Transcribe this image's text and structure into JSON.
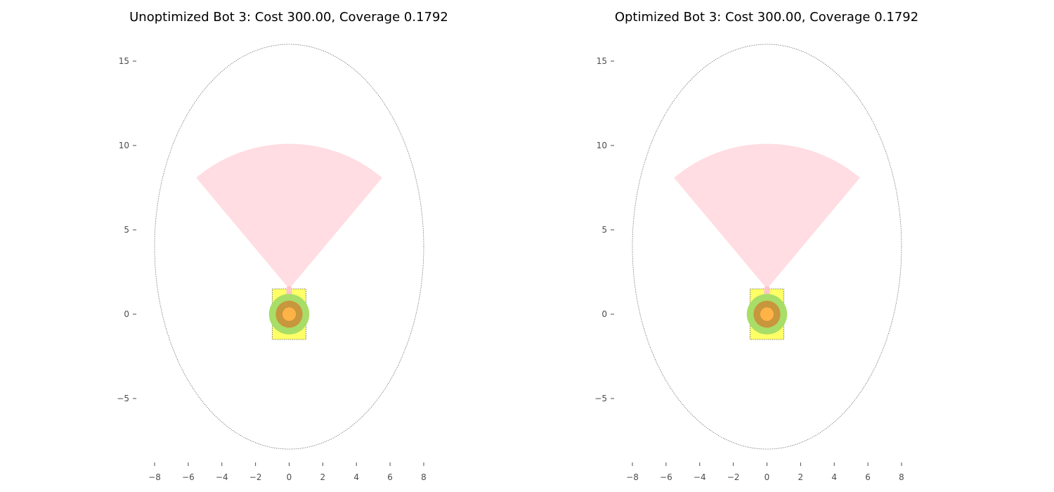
{
  "chart_data": [
    {
      "type": "scatter",
      "title": "Unoptimized Bot 3: Cost 300.00, Coverage 0.1792",
      "xlabel": "",
      "ylabel": "",
      "xlim": [
        -8.5,
        8.5
      ],
      "ylim": [
        -8.8,
        16.5
      ],
      "xticks": [
        -8,
        -6,
        -4,
        -2,
        0,
        2,
        4,
        6,
        8
      ],
      "xtick_labels": [
        "−8",
        "−6",
        "−4",
        "−2",
        "0",
        "2",
        "4",
        "6",
        "8"
      ],
      "yticks": [
        -5,
        0,
        5,
        10,
        15
      ],
      "ytick_labels": [
        "−5",
        "0",
        "5",
        "10",
        "15"
      ],
      "grid": false,
      "shapes": {
        "boundary_ellipse": {
          "cx": 0,
          "cy": 4,
          "rx": 8,
          "ry": 12,
          "color": "#444444",
          "style": "dotted"
        },
        "sensor_sector": {
          "cx": 0,
          "cy": 1.5,
          "radius": 8.6,
          "start_deg": 50,
          "end_deg": 130,
          "color": "#ffdde2"
        },
        "sensor_stem": {
          "x": 0,
          "y0": 0,
          "y1": 1.5,
          "color": "#ffc4cc"
        },
        "body_rect": {
          "x0": -1,
          "y0": -1.5,
          "x1": 1,
          "y1": 1.5,
          "color": "#ffff66",
          "edge": "#555555"
        },
        "outer_circle": {
          "cx": 0,
          "cy": 0,
          "r": 1.2,
          "color": "#a8de68"
        },
        "middle_circle": {
          "cx": 0,
          "cy": 0,
          "r": 0.8,
          "color": "#c8963c"
        },
        "inner_circle": {
          "cx": 0,
          "cy": 0,
          "r": 0.4,
          "color": "#ffb347"
        }
      }
    },
    {
      "type": "scatter",
      "title": "Optimized Bot 3: Cost 300.00, Coverage 0.1792",
      "xlabel": "",
      "ylabel": "",
      "xlim": [
        -8.5,
        8.5
      ],
      "ylim": [
        -8.8,
        16.5
      ],
      "xticks": [
        -8,
        -6,
        -4,
        -2,
        0,
        2,
        4,
        6,
        8
      ],
      "xtick_labels": [
        "−8",
        "−6",
        "−4",
        "−2",
        "0",
        "2",
        "4",
        "6",
        "8"
      ],
      "yticks": [
        -5,
        0,
        5,
        10,
        15
      ],
      "ytick_labels": [
        "−5",
        "0",
        "5",
        "10",
        "15"
      ],
      "grid": false,
      "shapes": {
        "boundary_ellipse": {
          "cx": 0,
          "cy": 4,
          "rx": 8,
          "ry": 12,
          "color": "#444444",
          "style": "dotted"
        },
        "sensor_sector": {
          "cx": 0,
          "cy": 1.5,
          "radius": 8.6,
          "start_deg": 50,
          "end_deg": 130,
          "color": "#ffdde2"
        },
        "sensor_stem": {
          "x": 0,
          "y0": 0,
          "y1": 1.5,
          "color": "#ffc4cc"
        },
        "body_rect": {
          "x0": -1,
          "y0": -1.5,
          "x1": 1,
          "y1": 1.5,
          "color": "#ffff66",
          "edge": "#555555"
        },
        "outer_circle": {
          "cx": 0,
          "cy": 0,
          "r": 1.2,
          "color": "#a8de68"
        },
        "middle_circle": {
          "cx": 0,
          "cy": 0,
          "r": 0.8,
          "color": "#c8963c"
        },
        "inner_circle": {
          "cx": 0,
          "cy": 0,
          "r": 0.4,
          "color": "#ffb347"
        }
      }
    }
  ]
}
